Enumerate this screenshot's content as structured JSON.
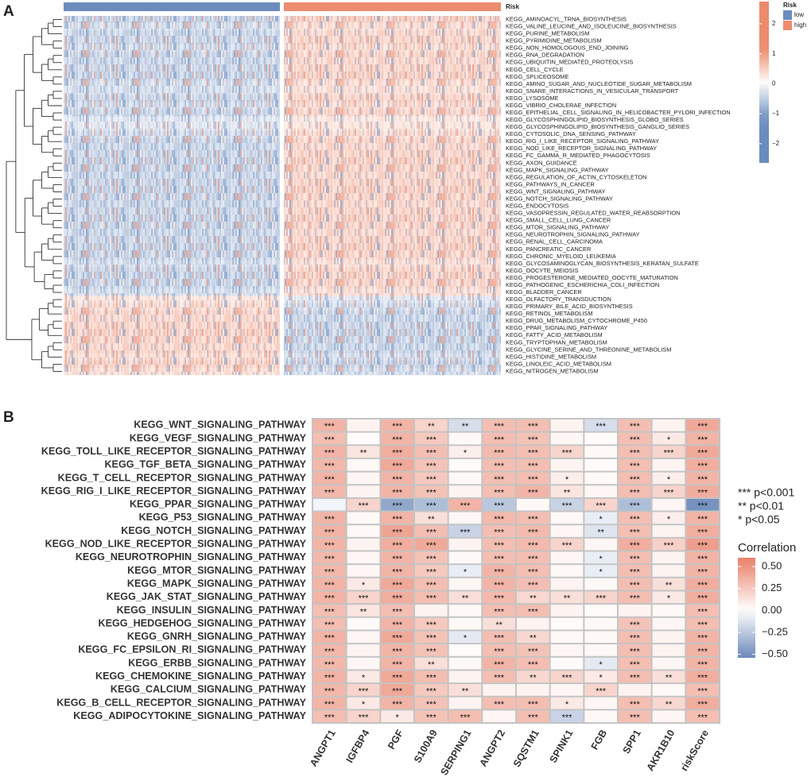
{
  "chart_data": [
    {
      "type": "heatmap",
      "panel_label": "A",
      "annotation_title": "Risk",
      "groups": [
        {
          "name": "low",
          "color": "#6b8cbd"
        },
        {
          "name": "high",
          "color": "#ec8d6f"
        }
      ],
      "rows": [
        "KEGG_AMINOACYL_TRNA_BIOSYNTHESIS",
        "KEGG_VALINE_LEUCINE_AND_ISOLEUCINE_BIOSYNTHESIS",
        "KEGG_PURINE_METABOLISM",
        "KEGG_PYRIMIDINE_METABOLISM",
        "KEGG_NON_HOMOLOGOUS_END_JOINING",
        "KEGG_RNA_DEGRADATION",
        "KEGG_UBIQUITIN_MEDIATED_PROTEOLYSIS",
        "KEGG_CELL_CYCLE",
        "KEGG_SPLICEOSOME",
        "KEGG_AMINO_SUGAR_AND_NUCLEOTIDE_SUGAR_METABOLISM",
        "KEGG_SNARE_INTERACTIONS_IN_VESICULAR_TRANSPORT",
        "KEGG_LYSOSOME",
        "KEGG_VIBRIO_CHOLERAE_INFECTION",
        "KEGG_EPITHELIAL_CELL_SIGNALING_IN_HELICOBACTER_PYLORI_INFECTION",
        "KEGG_GLYCOSPHINGOLIPID_BIOSYNTHESIS_GLOBO_SERIES",
        "KEGG_GLYCOSPHINGOLIPID_BIOSYNTHESIS_GANGLIO_SERIES",
        "KEGG_CYTOSOLIC_DNA_SENSING_PATHWAY",
        "KEGG_RIG_I_LIKE_RECEPTOR_SIGNALING_PATHWAY",
        "KEGG_NOD_LIKE_RECEPTOR_SIGNALING_PATHWAY",
        "KEGG_FC_GAMMA_R_MEDIATED_PHAGOCYTOSIS",
        "KEGG_AXON_GUIDANCE",
        "KEGG_MAPK_SIGNALING_PATHWAY",
        "KEGG_REGULATION_OF_ACTIN_CYTOSKELETON",
        "KEGG_PATHWAYS_IN_CANCER",
        "KEGG_WNT_SIGNALING_PATHWAY",
        "KEGG_NOTCH_SIGNALING_PATHWAY",
        "KEGG_ENDOCYTOSIS",
        "KEGG_VASOPRESSIN_REGULATED_WATER_REABSORPTION",
        "KEGG_SMALL_CELL_LUNG_CANCER",
        "KEGG_MTOR_SIGNALING_PATHWAY",
        "KEGG_NEUROTROPHIN_SIGNALING_PATHWAY",
        "KEGG_RENAL_CELL_CARCINOMA",
        "KEGG_PANCREATIC_CANCER",
        "KEGG_CHRONIC_MYELOID_LEUKEMIA",
        "KEGG_GLYCOSAMINOGLYCAN_BIOSYNTHESIS_KERATAN_SULFATE",
        "KEGG_OOCYTE_MEIOSIS",
        "KEGG_PROGESTERONE_MEDIATED_OOCYTE_MATURATION",
        "KEGG_PATHOGENIC_ESCHERICHIA_COLI_INFECTION",
        "KEGG_BLADDER_CANCER",
        "KEGG_OLFACTORY_TRANSDUCTION",
        "KEGG_PRIMARY_BILE_ACID_BIOSYNTHESIS",
        "KEGG_RETINOL_METABOLISM",
        "KEGG_DRUG_METABOLISM_CYTOCHROME_P450",
        "KEGG_PPAR_SIGNALING_PATHWAY",
        "KEGG_FATTY_ACID_METABOLISM",
        "KEGG_TRYPTOPHAN_METABOLISM",
        "KEGG_GLYCINE_SERINE_AND_THREONINE_METABOLISM",
        "KEGG_HISTIDINE_METABOLISM",
        "KEGG_LINOLEIC_ACID_METABOLISM",
        "KEGG_NITROGEN_METABOLISM"
      ],
      "values": [
        [
          -0.5,
          0.5
        ],
        [
          -0.4,
          0.4
        ],
        [
          -0.5,
          0.5
        ],
        [
          -0.5,
          0.5
        ],
        [
          -0.4,
          0.4
        ],
        [
          -0.5,
          0.5
        ],
        [
          -0.5,
          0.5
        ],
        [
          -0.5,
          0.5
        ],
        [
          -0.5,
          0.5
        ],
        [
          -0.4,
          0.4
        ],
        [
          -0.4,
          0.4
        ],
        [
          -0.5,
          0.5
        ],
        [
          -0.4,
          0.4
        ],
        [
          -0.5,
          0.5
        ],
        [
          -0.3,
          0.3
        ],
        [
          -0.3,
          0.3
        ],
        [
          -0.4,
          0.4
        ],
        [
          -0.5,
          0.5
        ],
        [
          -0.5,
          0.5
        ],
        [
          -0.5,
          0.5
        ],
        [
          -0.5,
          0.5
        ],
        [
          -0.5,
          0.5
        ],
        [
          -0.5,
          0.5
        ],
        [
          -0.5,
          0.5
        ],
        [
          -0.5,
          0.5
        ],
        [
          -0.5,
          0.5
        ],
        [
          -0.5,
          0.5
        ],
        [
          -0.5,
          0.5
        ],
        [
          -0.5,
          0.5
        ],
        [
          -0.5,
          0.5
        ],
        [
          -0.5,
          0.5
        ],
        [
          -0.5,
          0.5
        ],
        [
          -0.5,
          0.5
        ],
        [
          -0.5,
          0.5
        ],
        [
          -0.4,
          0.4
        ],
        [
          -0.5,
          0.5
        ],
        [
          -0.5,
          0.5
        ],
        [
          -0.5,
          0.5
        ],
        [
          -0.4,
          0.4
        ],
        [
          0.3,
          -0.3
        ],
        [
          0.4,
          -0.4
        ],
        [
          0.5,
          -0.5
        ],
        [
          0.5,
          -0.5
        ],
        [
          0.5,
          -0.5
        ],
        [
          0.5,
          -0.5
        ],
        [
          0.5,
          -0.5
        ],
        [
          0.5,
          -0.5
        ],
        [
          0.4,
          -0.4
        ],
        [
          0.5,
          -0.5
        ],
        [
          0.4,
          -0.4
        ]
      ],
      "colorbar": {
        "lim": [
          -2.64,
          2.74
        ],
        "ticks": [
          2,
          1,
          0,
          {
            "value": -1,
            "label": "−1"
          },
          {
            "value": -2,
            "label": "−2"
          }
        ]
      }
    },
    {
      "type": "heatmap",
      "panel_label": "B",
      "rows": [
        "KEGG_WNT_SIGNALING_PATHWAY",
        "KEGG_VEGF_SIGNALING_PATHWAY",
        "KEGG_TOLL_LIKE_RECEPTOR_SIGNALING_PATHWAY",
        "KEGG_TGF_BETA_SIGNALING_PATHWAY",
        "KEGG_T_CELL_RECEPTOR_SIGNALING_PATHWAY",
        "KEGG_RIG_I_LIKE_RECEPTOR_SIGNALING_PATHWAY",
        "KEGG_PPAR_SIGNALING_PATHWAY",
        "KEGG_P53_SIGNALING_PATHWAY",
        "KEGG_NOTCH_SIGNALING_PATHWAY",
        "KEGG_NOD_LIKE_RECEPTOR_SIGNALING_PATHWAY",
        "KEGG_NEUROTROPHIN_SIGNALING_PATHWAY",
        "KEGG_MTOR_SIGNALING_PATHWAY",
        "KEGG_MAPK_SIGNALING_PATHWAY",
        "KEGG_JAK_STAT_SIGNALING_PATHWAY",
        "KEGG_INSULIN_SIGNALING_PATHWAY",
        "KEGG_HEDGEHOG_SIGNALING_PATHWAY",
        "KEGG_GNRH_SIGNALING_PATHWAY",
        "KEGG_FC_EPSILON_RI_SIGNALING_PATHWAY",
        "KEGG_ERBB_SIGNALING_PATHWAY",
        "KEGG_CHEMOKINE_SIGNALING_PATHWAY",
        "KEGG_CALCIUM_SIGNALING_PATHWAY",
        "KEGG_B_CELL_RECEPTOR_SIGNALING_PATHWAY",
        "KEGG_ADIPOCYTOKINE_SIGNALING_PATHWAY"
      ],
      "columns": [
        "ANGPT1",
        "IGFBP4",
        "PGF",
        "S100A9",
        "SERPING1",
        "ANGPT2",
        "SQSTM1",
        "SPINK1",
        "FGB",
        "SPP1",
        "AKR1B10",
        "riskScore"
      ],
      "values": [
        [
          0.35,
          0.05,
          0.35,
          0.2,
          -0.15,
          0.3,
          0.3,
          0.05,
          -0.15,
          0.3,
          0.05,
          0.4
        ],
        [
          0.3,
          0.02,
          0.35,
          0.25,
          0.03,
          0.3,
          0.28,
          0.04,
          0.02,
          0.3,
          0.1,
          0.35
        ],
        [
          0.35,
          0.12,
          0.38,
          0.3,
          0.08,
          0.32,
          0.3,
          0.2,
          0.03,
          0.3,
          0.2,
          0.4
        ],
        [
          0.33,
          0.03,
          0.4,
          0.28,
          0.02,
          0.3,
          0.3,
          0.05,
          0.02,
          0.3,
          0.05,
          0.38
        ],
        [
          0.35,
          0.04,
          0.35,
          0.25,
          0.03,
          0.3,
          0.3,
          0.08,
          0.03,
          0.3,
          0.08,
          0.35
        ],
        [
          0.33,
          0.05,
          0.35,
          0.28,
          0.05,
          0.3,
          0.35,
          0.12,
          0.04,
          0.3,
          0.2,
          0.38
        ],
        [
          -0.05,
          0.2,
          -0.4,
          -0.3,
          0.35,
          -0.25,
          0.03,
          -0.2,
          0.2,
          -0.3,
          0.04,
          -0.5
        ],
        [
          0.35,
          0.03,
          0.35,
          0.15,
          0.04,
          0.32,
          0.3,
          0.03,
          -0.08,
          0.3,
          0.08,
          0.35
        ],
        [
          0.35,
          0.03,
          0.42,
          0.3,
          -0.2,
          0.3,
          0.32,
          0.04,
          -0.12,
          0.3,
          0.05,
          0.38
        ],
        [
          0.35,
          0.05,
          0.38,
          0.4,
          0.05,
          0.3,
          0.32,
          0.2,
          0.04,
          0.38,
          0.22,
          0.45
        ],
        [
          0.33,
          0.04,
          0.35,
          0.28,
          0.03,
          0.3,
          0.3,
          0.04,
          -0.08,
          0.3,
          0.05,
          0.35
        ],
        [
          0.33,
          0.04,
          0.35,
          0.25,
          -0.08,
          0.35,
          0.3,
          0.03,
          -0.08,
          0.3,
          0.05,
          0.35
        ],
        [
          0.35,
          0.1,
          0.4,
          0.3,
          0.04,
          0.35,
          0.3,
          0.05,
          0.03,
          0.3,
          0.15,
          0.38
        ],
        [
          0.35,
          0.2,
          0.38,
          0.3,
          0.15,
          0.32,
          0.18,
          0.15,
          0.2,
          0.3,
          0.1,
          0.38
        ],
        [
          0.3,
          0.12,
          0.3,
          0.05,
          0.03,
          0.3,
          0.3,
          0.05,
          0.02,
          0.05,
          0.03,
          0.3
        ],
        [
          0.3,
          0.02,
          0.35,
          0.25,
          0.03,
          0.15,
          0.05,
          0.02,
          0.03,
          0.28,
          0.04,
          0.3
        ],
        [
          0.35,
          0.04,
          0.4,
          0.28,
          -0.1,
          0.3,
          0.18,
          0.03,
          0.03,
          0.3,
          0.05,
          0.35
        ],
        [
          0.33,
          0.05,
          0.35,
          0.28,
          0.02,
          0.3,
          0.28,
          0.04,
          0.03,
          0.3,
          0.05,
          0.35
        ],
        [
          0.33,
          0.04,
          0.35,
          0.15,
          0.03,
          0.35,
          0.3,
          0.02,
          -0.1,
          0.3,
          0.04,
          0.35
        ],
        [
          0.35,
          0.1,
          0.4,
          0.3,
          0.05,
          0.3,
          0.18,
          0.2,
          0.1,
          0.3,
          0.15,
          0.38
        ],
        [
          0.33,
          0.2,
          0.4,
          0.25,
          0.15,
          0.05,
          0.05,
          0.04,
          0.2,
          0.05,
          0.03,
          0.3
        ],
        [
          0.35,
          0.1,
          0.35,
          0.28,
          0.05,
          0.3,
          0.3,
          0.1,
          0.04,
          0.3,
          0.18,
          0.38
        ],
        [
          0.3,
          0.2,
          0.1,
          0.28,
          0.3,
          0.04,
          0.3,
          -0.2,
          0.03,
          0.3,
          0.04,
          0.3
        ]
      ],
      "significance": [
        [
          "***",
          null,
          "***",
          "**",
          "**",
          "***",
          "***",
          null,
          "***",
          "***",
          null,
          "***"
        ],
        [
          "***",
          null,
          "***",
          "***",
          null,
          "***",
          "***",
          null,
          null,
          "***",
          "*",
          "***"
        ],
        [
          "***",
          "**",
          "***",
          "***",
          "*",
          "***",
          "***",
          "***",
          null,
          "***",
          "***",
          "***"
        ],
        [
          "***",
          null,
          "***",
          "***",
          null,
          "***",
          "***",
          null,
          null,
          "***",
          null,
          "***"
        ],
        [
          "***",
          null,
          "***",
          "***",
          null,
          "***",
          "***",
          "*",
          null,
          "***",
          "*",
          "***"
        ],
        [
          "***",
          null,
          "***",
          "***",
          null,
          "***",
          "***",
          "**",
          null,
          "***",
          "***",
          "***"
        ],
        [
          null,
          "***",
          "***",
          "***",
          "***",
          "***",
          null,
          "***",
          "***",
          "***",
          null,
          "***"
        ],
        [
          "***",
          null,
          "***",
          "**",
          null,
          "***",
          "***",
          null,
          "*",
          "***",
          "*",
          "***"
        ],
        [
          "***",
          null,
          "***",
          "***",
          "***",
          "***",
          "***",
          null,
          "**",
          "***",
          null,
          "***"
        ],
        [
          "***",
          null,
          "***",
          "***",
          null,
          "***",
          "***",
          "***",
          null,
          "***",
          "***",
          "***"
        ],
        [
          "***",
          null,
          "***",
          "***",
          null,
          "***",
          "***",
          null,
          "*",
          "***",
          null,
          "***"
        ],
        [
          "***",
          null,
          "***",
          "***",
          "*",
          "***",
          "***",
          null,
          "*",
          "***",
          null,
          "***"
        ],
        [
          "***",
          "*",
          "***",
          "***",
          null,
          "***",
          "***",
          null,
          null,
          "***",
          "**",
          "***"
        ],
        [
          "***",
          "***",
          "***",
          "***",
          "**",
          "***",
          "**",
          "**",
          "***",
          "***",
          "*",
          "***"
        ],
        [
          "***",
          "**",
          "***",
          null,
          null,
          "***",
          "***",
          null,
          null,
          null,
          null,
          "***"
        ],
        [
          "***",
          null,
          "***",
          "***",
          null,
          "**",
          null,
          null,
          null,
          "***",
          null,
          "***"
        ],
        [
          "***",
          null,
          "***",
          "***",
          "*",
          "***",
          "**",
          null,
          null,
          "***",
          null,
          "***"
        ],
        [
          "***",
          null,
          "***",
          "***",
          null,
          "***",
          "***",
          null,
          null,
          "***",
          null,
          "***"
        ],
        [
          "***",
          null,
          "***",
          "**",
          null,
          "***",
          "***",
          null,
          "*",
          "***",
          null,
          "***"
        ],
        [
          "***",
          "*",
          "***",
          "***",
          null,
          "***",
          "**",
          "***",
          "*",
          "***",
          "**",
          "***"
        ],
        [
          "***",
          "***",
          "***",
          "***",
          "**",
          null,
          null,
          null,
          "***",
          null,
          null,
          "***"
        ],
        [
          "***",
          "*",
          "***",
          "***",
          null,
          "***",
          "***",
          "*",
          null,
          "***",
          "**",
          "***"
        ],
        [
          "***",
          "***",
          "*",
          "***",
          "***",
          null,
          "***",
          "***",
          null,
          "***",
          null,
          "***"
        ]
      ],
      "significance_legend": [
        "***  p<0.001",
        "**  p<0.01",
        "*  p<0.05"
      ],
      "legend_title": "Correlation",
      "colorbar": {
        "lim": [
          -0.54,
          0.6
        ],
        "ticks": [
          {
            "value": 0.5,
            "label": "0.50"
          },
          {
            "value": 0.25,
            "label": "0.25"
          },
          {
            "value": 0,
            "label": "0.00"
          },
          {
            "value": -0.25,
            "label": "−0.25"
          },
          {
            "value": -0.5,
            "label": "−0.50"
          }
        ]
      }
    }
  ]
}
